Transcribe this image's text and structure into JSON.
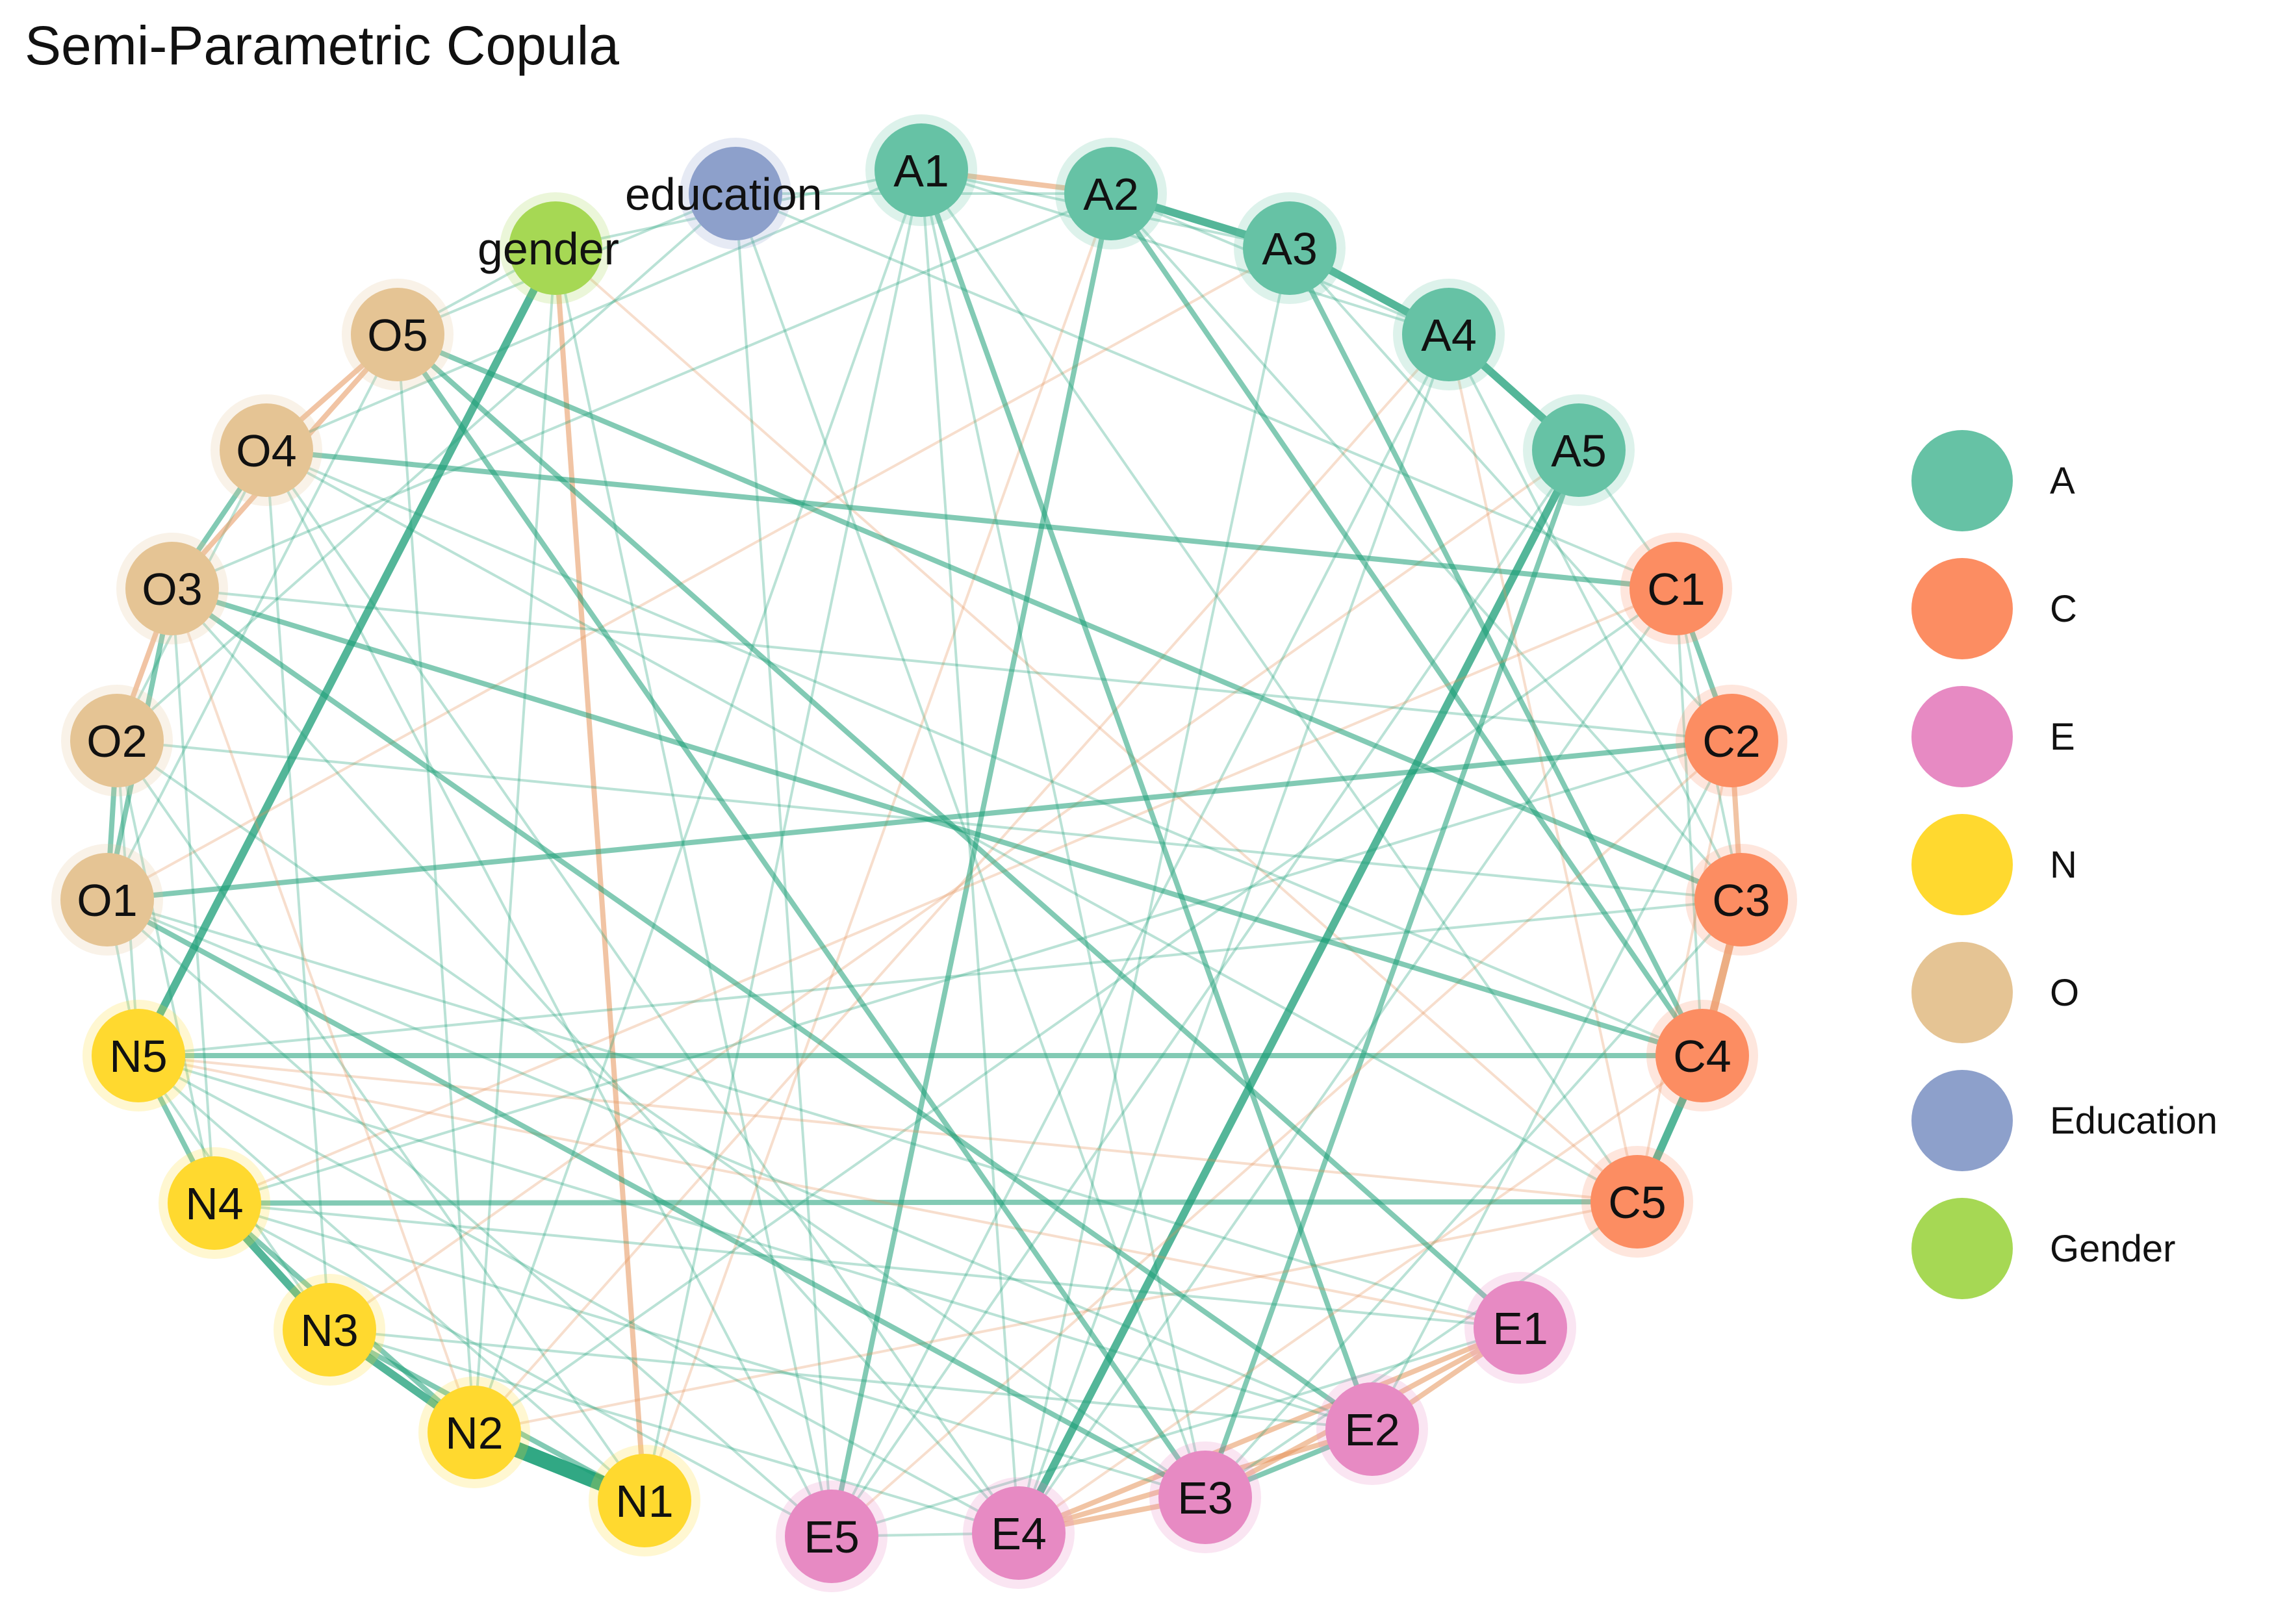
{
  "title": "Semi-Parametric Copula",
  "colors": {
    "A": "#66c2a5",
    "C": "#fc8d62",
    "E": "#e78ac3",
    "N": "#ffd92f",
    "O": "#e5c494",
    "Education": "#8da0cb",
    "Gender": "#a6d854",
    "positive_edge": "#1b9e77",
    "negative_edge": "#e6935a"
  },
  "legend": [
    {
      "label": "A",
      "group": "A"
    },
    {
      "label": "C",
      "group": "C"
    },
    {
      "label": "E",
      "group": "E"
    },
    {
      "label": "N",
      "group": "N"
    },
    {
      "label": "O",
      "group": "O"
    },
    {
      "label": "Education",
      "group": "Education"
    },
    {
      "label": "Gender",
      "group": "Gender"
    }
  ],
  "nodes": [
    {
      "id": "A1",
      "label": "A1",
      "group": "A"
    },
    {
      "id": "A2",
      "label": "A2",
      "group": "A"
    },
    {
      "id": "A3",
      "label": "A3",
      "group": "A"
    },
    {
      "id": "A4",
      "label": "A4",
      "group": "A"
    },
    {
      "id": "A5",
      "label": "A5",
      "group": "A"
    },
    {
      "id": "C1",
      "label": "C1",
      "group": "C"
    },
    {
      "id": "C2",
      "label": "C2",
      "group": "C"
    },
    {
      "id": "C3",
      "label": "C3",
      "group": "C"
    },
    {
      "id": "C4",
      "label": "C4",
      "group": "C"
    },
    {
      "id": "C5",
      "label": "C5",
      "group": "C"
    },
    {
      "id": "E1",
      "label": "E1",
      "group": "E"
    },
    {
      "id": "E2",
      "label": "E2",
      "group": "E"
    },
    {
      "id": "E3",
      "label": "E3",
      "group": "E"
    },
    {
      "id": "E4",
      "label": "E4",
      "group": "E"
    },
    {
      "id": "E5",
      "label": "E5",
      "group": "E"
    },
    {
      "id": "N1",
      "label": "N1",
      "group": "N"
    },
    {
      "id": "N2",
      "label": "N2",
      "group": "N"
    },
    {
      "id": "N3",
      "label": "N3",
      "group": "N"
    },
    {
      "id": "N4",
      "label": "N4",
      "group": "N"
    },
    {
      "id": "N5",
      "label": "N5",
      "group": "N"
    },
    {
      "id": "O1",
      "label": "O1",
      "group": "O"
    },
    {
      "id": "O2",
      "label": "O2",
      "group": "O"
    },
    {
      "id": "O3",
      "label": "O3",
      "group": "O"
    },
    {
      "id": "O4",
      "label": "O4",
      "group": "O"
    },
    {
      "id": "O5",
      "label": "O5",
      "group": "O"
    },
    {
      "id": "gender",
      "label": "gender",
      "group": "Gender"
    },
    {
      "id": "education",
      "label": "education",
      "group": "Education"
    }
  ],
  "edges": [
    [
      "A1",
      "A2",
      "neg",
      2
    ],
    [
      "A2",
      "A3",
      "pos",
      3
    ],
    [
      "A3",
      "A4",
      "pos",
      3
    ],
    [
      "A4",
      "A5",
      "pos",
      3
    ],
    [
      "A1",
      "A3",
      "pos",
      1
    ],
    [
      "A2",
      "A4",
      "pos",
      1
    ],
    [
      "A1",
      "A4",
      "pos",
      1
    ],
    [
      "C1",
      "C2",
      "pos",
      2
    ],
    [
      "C2",
      "C3",
      "neg",
      2
    ],
    [
      "C3",
      "C4",
      "neg",
      3
    ],
    [
      "C4",
      "C5",
      "pos",
      3
    ],
    [
      "C1",
      "C4",
      "pos",
      1
    ],
    [
      "C2",
      "C5",
      "neg",
      1
    ],
    [
      "C1",
      "C3",
      "pos",
      1
    ],
    [
      "E1",
      "E2",
      "neg",
      2
    ],
    [
      "E2",
      "E3",
      "pos",
      2
    ],
    [
      "E3",
      "E4",
      "neg",
      2
    ],
    [
      "E4",
      "E5",
      "pos",
      1
    ],
    [
      "E1",
      "E4",
      "neg",
      2
    ],
    [
      "E1",
      "E3",
      "neg",
      2
    ],
    [
      "E2",
      "E4",
      "neg",
      2
    ],
    [
      "E1",
      "E5",
      "pos",
      1
    ],
    [
      "N1",
      "N2",
      "pos",
      5
    ],
    [
      "N2",
      "N3",
      "pos",
      3
    ],
    [
      "N3",
      "N4",
      "pos",
      3
    ],
    [
      "N4",
      "N5",
      "pos",
      2
    ],
    [
      "N1",
      "N3",
      "pos",
      2
    ],
    [
      "N2",
      "N4",
      "pos",
      2
    ],
    [
      "N1",
      "N5",
      "pos",
      1
    ],
    [
      "N3",
      "N5",
      "pos",
      1
    ],
    [
      "O1",
      "O2",
      "pos",
      2
    ],
    [
      "O2",
      "O3",
      "neg",
      2
    ],
    [
      "O3",
      "O4",
      "pos",
      2
    ],
    [
      "O4",
      "O5",
      "neg",
      2
    ],
    [
      "O1",
      "O3",
      "pos",
      2
    ],
    [
      "O2",
      "O4",
      "pos",
      1
    ],
    [
      "O3",
      "O5",
      "neg",
      2
    ],
    [
      "O1",
      "O5",
      "pos",
      1
    ],
    [
      "gender",
      "N5",
      "pos",
      3
    ],
    [
      "gender",
      "N1",
      "neg",
      2
    ],
    [
      "gender",
      "N2",
      "pos",
      1
    ],
    [
      "gender",
      "A1",
      "pos",
      1
    ],
    [
      "gender",
      "E5",
      "pos",
      1
    ],
    [
      "gender",
      "O5",
      "pos",
      1
    ],
    [
      "gender",
      "C5",
      "neg",
      1
    ],
    [
      "education",
      "O5",
      "pos",
      1
    ],
    [
      "education",
      "E5",
      "pos",
      1
    ],
    [
      "education",
      "A2",
      "pos",
      1
    ],
    [
      "education",
      "C1",
      "pos",
      1
    ],
    [
      "education",
      "E3",
      "pos",
      1
    ],
    [
      "education",
      "O2",
      "pos",
      1
    ],
    [
      "A5",
      "E4",
      "pos",
      3
    ],
    [
      "A5",
      "E3",
      "pos",
      2
    ],
    [
      "A5",
      "C1",
      "pos",
      1
    ],
    [
      "A5",
      "N3",
      "neg",
      1
    ],
    [
      "A5",
      "E5",
      "pos",
      1
    ],
    [
      "A4",
      "E5",
      "pos",
      1
    ],
    [
      "A4",
      "E4",
      "pos",
      1
    ],
    [
      "A4",
      "C5",
      "neg",
      1
    ],
    [
      "A4",
      "N2",
      "neg",
      1
    ],
    [
      "A4",
      "C3",
      "pos",
      1
    ],
    [
      "A3",
      "C4",
      "pos",
      2
    ],
    [
      "A3",
      "E4",
      "pos",
      1
    ],
    [
      "A3",
      "O1",
      "neg",
      1
    ],
    [
      "A3",
      "C2",
      "pos",
      1
    ],
    [
      "A2",
      "E5",
      "pos",
      2
    ],
    [
      "A2",
      "C4",
      "pos",
      2
    ],
    [
      "A2",
      "O3",
      "pos",
      1
    ],
    [
      "A2",
      "N1",
      "neg",
      1
    ],
    [
      "A2",
      "C3",
      "pos",
      1
    ],
    [
      "A1",
      "E2",
      "pos",
      2
    ],
    [
      "A1",
      "E3",
      "pos",
      1
    ],
    [
      "A1",
      "N2",
      "pos",
      1
    ],
    [
      "A1",
      "O4",
      "pos",
      1
    ],
    [
      "A1",
      "C5",
      "pos",
      1
    ],
    [
      "A1",
      "E4",
      "pos",
      1
    ],
    [
      "A1",
      "N1",
      "pos",
      1
    ],
    [
      "C1",
      "O4",
      "pos",
      2
    ],
    [
      "C1",
      "N4",
      "neg",
      1
    ],
    [
      "C1",
      "E4",
      "pos",
      1
    ],
    [
      "C1",
      "N2",
      "pos",
      1
    ],
    [
      "C2",
      "O1",
      "pos",
      2
    ],
    [
      "C2",
      "O3",
      "pos",
      1
    ],
    [
      "C2",
      "E5",
      "neg",
      1
    ],
    [
      "C2",
      "N4",
      "pos",
      1
    ],
    [
      "C2",
      "E2",
      "pos",
      1
    ],
    [
      "C3",
      "O5",
      "pos",
      2
    ],
    [
      "C3",
      "N5",
      "pos",
      1
    ],
    [
      "C3",
      "E3",
      "pos",
      1
    ],
    [
      "C3",
      "O2",
      "pos",
      1
    ],
    [
      "C4",
      "O3",
      "pos",
      2
    ],
    [
      "C4",
      "N5",
      "pos",
      2
    ],
    [
      "C4",
      "E4",
      "neg",
      1
    ],
    [
      "C4",
      "O4",
      "pos",
      1
    ],
    [
      "C5",
      "N4",
      "pos",
      2
    ],
    [
      "C5",
      "N2",
      "neg",
      1
    ],
    [
      "C5",
      "O4",
      "pos",
      1
    ],
    [
      "C5",
      "E3",
      "pos",
      1
    ],
    [
      "C5",
      "N5",
      "neg",
      1
    ],
    [
      "E1",
      "O5",
      "pos",
      2
    ],
    [
      "E1",
      "N4",
      "pos",
      1
    ],
    [
      "E1",
      "O1",
      "pos",
      1
    ],
    [
      "E1",
      "N5",
      "neg",
      1
    ],
    [
      "E2",
      "O3",
      "pos",
      2
    ],
    [
      "E2",
      "N5",
      "pos",
      1
    ],
    [
      "E2",
      "O1",
      "pos",
      1
    ],
    [
      "E2",
      "N3",
      "pos",
      1
    ],
    [
      "E3",
      "O2",
      "pos",
      1
    ],
    [
      "E3",
      "O5",
      "pos",
      2
    ],
    [
      "E3",
      "N4",
      "pos",
      1
    ],
    [
      "E3",
      "O1",
      "pos",
      2
    ],
    [
      "E4",
      "O3",
      "pos",
      1
    ],
    [
      "E4",
      "O4",
      "pos",
      1
    ],
    [
      "E4",
      "N3",
      "pos",
      1
    ],
    [
      "E4",
      "N5",
      "pos",
      1
    ],
    [
      "E5",
      "O4",
      "pos",
      1
    ],
    [
      "E5",
      "N4",
      "pos",
      1
    ],
    [
      "E5",
      "O1",
      "pos",
      1
    ],
    [
      "N5",
      "O1",
      "pos",
      1
    ],
    [
      "N4",
      "O3",
      "pos",
      1
    ],
    [
      "N3",
      "O4",
      "pos",
      1
    ],
    [
      "N2",
      "O5",
      "pos",
      1
    ],
    [
      "N1",
      "O2",
      "pos",
      1
    ],
    [
      "N2",
      "O3",
      "neg",
      1
    ],
    [
      "N5",
      "O2",
      "pos",
      1
    ],
    [
      "N4",
      "O2",
      "pos",
      1
    ]
  ]
}
